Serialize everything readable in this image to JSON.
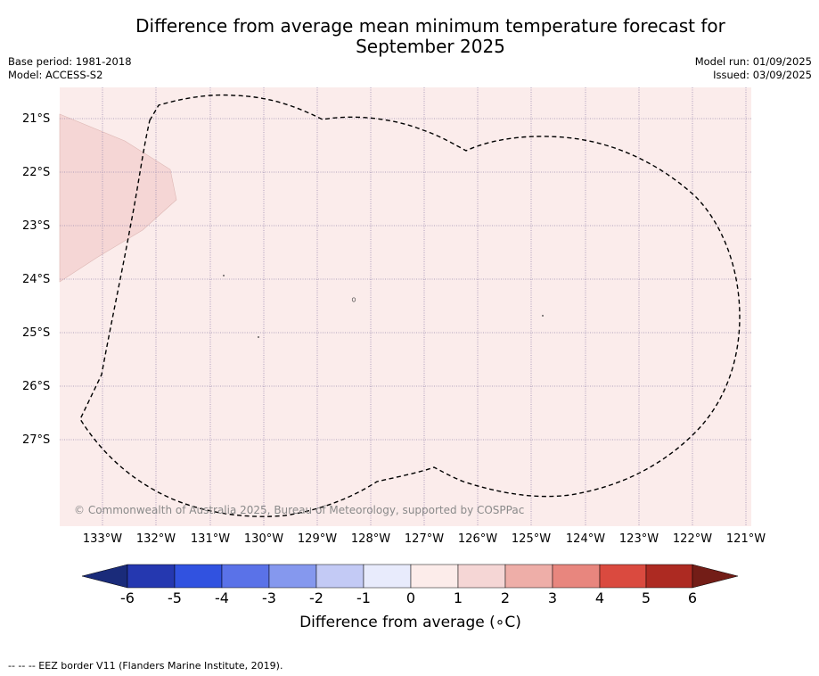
{
  "title_line1": "Difference from average mean minimum temperature forecast for",
  "title_line2": "September 2025",
  "base_period": "Base period: 1981-2018",
  "model": "Model: ACCESS-S2",
  "model_run": "Model run: 01/09/2025",
  "issued": "Issued: 03/09/2025",
  "lat_labels": [
    "21°S",
    "22°S",
    "23°S",
    "24°S",
    "25°S",
    "26°S",
    "27°S"
  ],
  "lon_labels": [
    "133°W",
    "132°W",
    "131°W",
    "130°W",
    "129°W",
    "128°W",
    "127°W",
    "126°W",
    "125°W",
    "124°W",
    "123°W",
    "122°W",
    "121°W"
  ],
  "copyright": "© Commonwealth of Australia 2025, Bureau of Meteorology, supported by COSPPac",
  "colorbar": {
    "ticks": [
      "-6",
      "-5",
      "-4",
      "-3",
      "-2",
      "-1",
      "0",
      "1",
      "2",
      "3",
      "4",
      "5",
      "6"
    ],
    "colors": [
      "#1a2b7a",
      "#2538b0",
      "#3152e0",
      "#5a72e8",
      "#8598ee",
      "#c3caf5",
      "#e8ebfc",
      "#fcecea",
      "#f5d6d5",
      "#eeaea8",
      "#e8867e",
      "#da4a3f",
      "#ad2a22",
      "#731d17"
    ],
    "title": "Difference from average (",
    "title_unit": "∘C)"
  },
  "map_fill_color": "#fbeceb",
  "land_region_color": "#f5d6d5",
  "footer": "-- -- -- EEZ border V11 (Flanders Marine Institute, 2019)."
}
